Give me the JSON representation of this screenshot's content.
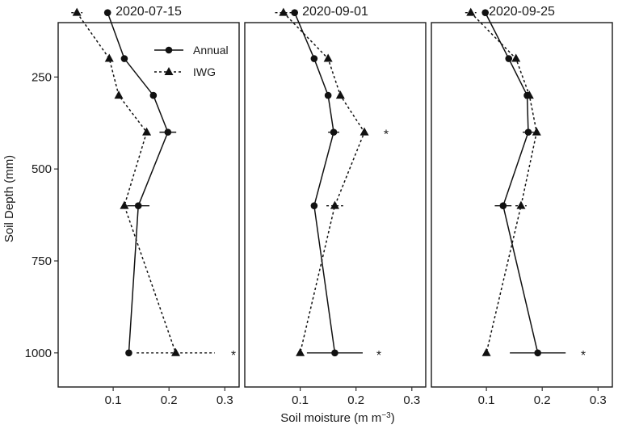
{
  "chart_data": {
    "type": "line",
    "title": "",
    "xlabel": "Soil moisture (m m",
    "xlabel_sup": "−3",
    "xlabel_close": ")",
    "ylabel": "Soil Depth (mm)",
    "xlim": [
      0.0,
      0.33
    ],
    "ylim": [
      1000,
      100
    ],
    "y_reversed": true,
    "x_ticks": [
      0.1,
      0.2,
      0.3
    ],
    "x_tick_labels": [
      "0.1",
      "0.2",
      "0.3"
    ],
    "y_ticks": [
      250,
      500,
      750,
      1000
    ],
    "y_tick_labels": [
      "250",
      "500",
      "750",
      "1000"
    ],
    "grid": false,
    "legend_position": "top-right of first panel",
    "legend": [
      {
        "name": "Annual",
        "marker": "circle",
        "dash": "solid"
      },
      {
        "name": "IWG",
        "marker": "triangle",
        "dash": "dotted"
      }
    ],
    "significance_marker": "*",
    "panels": [
      {
        "title": "2020-07-15",
        "series": [
          {
            "name": "Annual",
            "points": [
              {
                "depth": 75,
                "x": 0.09,
                "err": 0
              },
              {
                "depth": 200,
                "x": 0.12,
                "err": 0
              },
              {
                "depth": 300,
                "x": 0.172,
                "err": 0
              },
              {
                "depth": 400,
                "x": 0.198,
                "err": 0.015
              },
              {
                "depth": 600,
                "x": 0.145,
                "err": 0.02
              },
              {
                "depth": 1000,
                "x": 0.128,
                "err": 0
              }
            ]
          },
          {
            "name": "IWG",
            "points": [
              {
                "depth": 75,
                "x": 0.035,
                "err": 0.01
              },
              {
                "depth": 200,
                "x": 0.093,
                "err": 0
              },
              {
                "depth": 300,
                "x": 0.11,
                "err": 0
              },
              {
                "depth": 400,
                "x": 0.16,
                "err": 0
              },
              {
                "depth": 600,
                "x": 0.12,
                "err": 0
              },
              {
                "depth": 1000,
                "x": 0.212,
                "err": 0.07
              }
            ]
          }
        ],
        "significant_depths": [
          1000
        ]
      },
      {
        "title": "2020-09-01",
        "series": [
          {
            "name": "Annual",
            "points": [
              {
                "depth": 75,
                "x": 0.09,
                "err": 0
              },
              {
                "depth": 200,
                "x": 0.125,
                "err": 0
              },
              {
                "depth": 300,
                "x": 0.15,
                "err": 0
              },
              {
                "depth": 400,
                "x": 0.16,
                "err": 0.01
              },
              {
                "depth": 600,
                "x": 0.125,
                "err": 0
              },
              {
                "depth": 1000,
                "x": 0.162,
                "err": 0.05
              }
            ]
          },
          {
            "name": "IWG",
            "points": [
              {
                "depth": 75,
                "x": 0.07,
                "err": 0.015
              },
              {
                "depth": 200,
                "x": 0.15,
                "err": 0
              },
              {
                "depth": 300,
                "x": 0.172,
                "err": 0
              },
              {
                "depth": 400,
                "x": 0.215,
                "err": 0
              },
              {
                "depth": 600,
                "x": 0.162,
                "err": 0.015
              },
              {
                "depth": 1000,
                "x": 0.1,
                "err": 0
              }
            ]
          }
        ],
        "significant_depths": [
          400,
          1000
        ]
      },
      {
        "title": "2020-09-25",
        "series": [
          {
            "name": "Annual",
            "points": [
              {
                "depth": 75,
                "x": 0.098,
                "err": 0
              },
              {
                "depth": 200,
                "x": 0.14,
                "err": 0
              },
              {
                "depth": 300,
                "x": 0.173,
                "err": 0
              },
              {
                "depth": 400,
                "x": 0.175,
                "err": 0.01
              },
              {
                "depth": 600,
                "x": 0.13,
                "err": 0.015
              },
              {
                "depth": 1000,
                "x": 0.192,
                "err": 0.05
              }
            ]
          },
          {
            "name": "IWG",
            "points": [
              {
                "depth": 75,
                "x": 0.072,
                "err": 0.01
              },
              {
                "depth": 200,
                "x": 0.153,
                "err": 0
              },
              {
                "depth": 300,
                "x": 0.177,
                "err": 0
              },
              {
                "depth": 400,
                "x": 0.19,
                "err": 0
              },
              {
                "depth": 600,
                "x": 0.162,
                "err": 0.01
              },
              {
                "depth": 1000,
                "x": 0.1,
                "err": 0
              }
            ]
          }
        ],
        "significant_depths": [
          1000
        ]
      }
    ]
  }
}
